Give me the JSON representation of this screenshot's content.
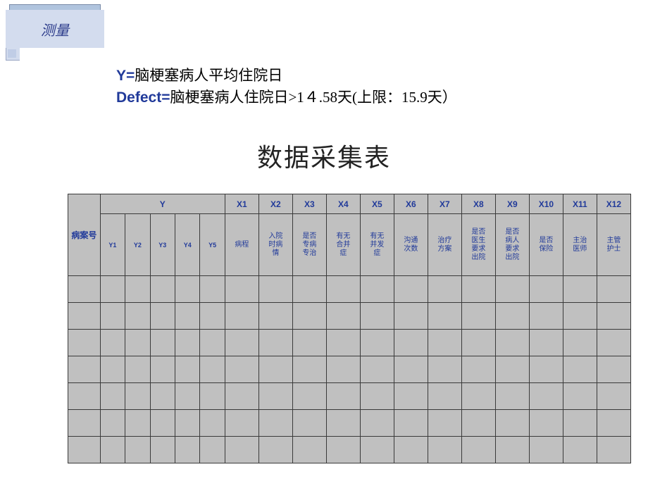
{
  "banner": {
    "title": "测量"
  },
  "definitions": {
    "y_label": "Y=",
    "y_text": "脑梗塞病人平均住院日",
    "defect_label": "Defect=",
    "defect_text": "脑梗塞病人住院日>1４.58天(上限：15.9天）"
  },
  "table_title": "数据采集表",
  "table": {
    "row1": {
      "y_group": "Y",
      "x_headers": [
        "X1",
        "X2",
        "X3",
        "X4",
        "X5",
        "X6",
        "X7",
        "X8",
        "X9",
        "X10",
        "X11",
        "X12"
      ]
    },
    "row2": {
      "case_no": "病案号",
      "y_subs": [
        "Y1",
        "Y2",
        "Y3",
        "Y4",
        "Y5"
      ],
      "x_labels": [
        "病程",
        "入院时病情",
        "是否专病专治",
        "有无合并症",
        "有无并发症",
        "沟通次数",
        "治疗方案",
        "是否医生要求出院",
        "是否病人要求出院",
        "是否保险",
        "主治医师",
        "主管护士"
      ]
    },
    "empty_rows": 7,
    "colors": {
      "cell_bg": "#c0c0c0",
      "border": "#3a3a3a",
      "header_text": "#213a9a",
      "banner_bg": "#d3dcee",
      "banner_text": "#2a3a8a",
      "page_bg": "#ffffff"
    }
  }
}
